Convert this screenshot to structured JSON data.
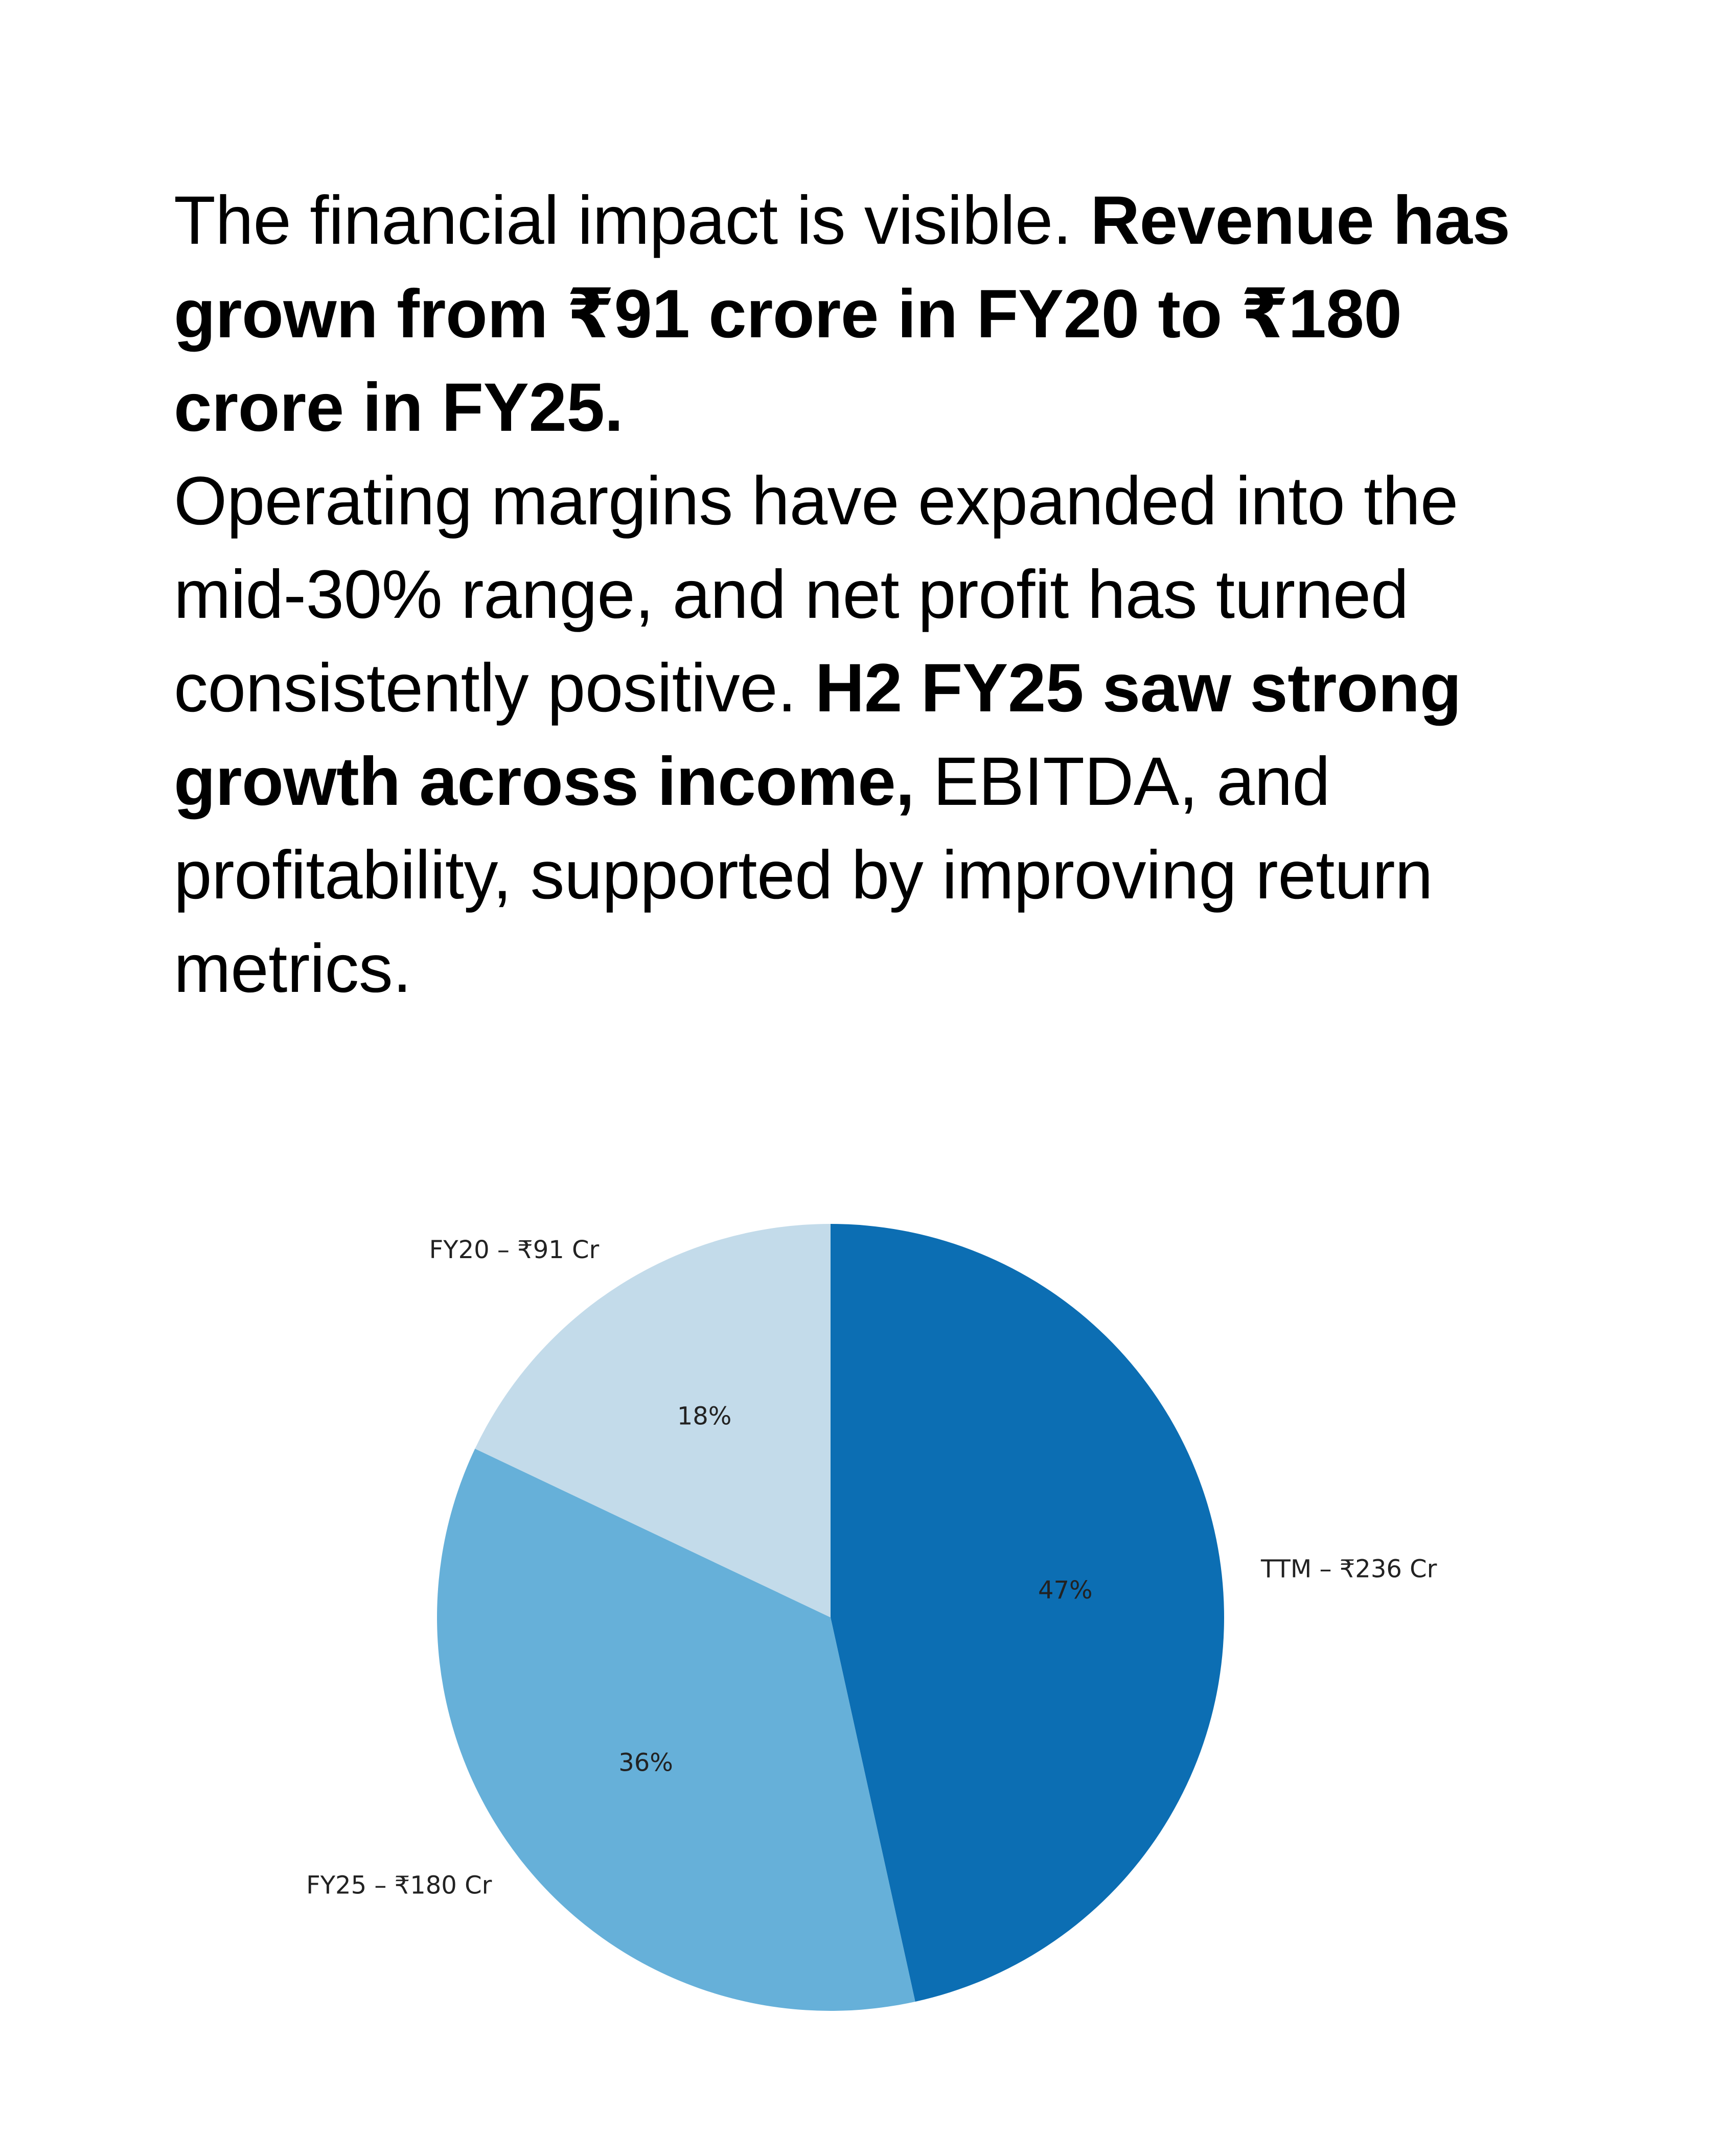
{
  "text": {
    "p1_normal": "The financial impact is visible. ",
    "p1_bold": "Revenue has grown from ₹91 crore in FY20 to ₹180 crore in FY25.",
    "p2_normal_a": "Operating margins have expanded into the mid-30% range, and net profit has turned consistently positive. ",
    "p2_bold": "H2 FY25 saw strong growth across income,",
    "p2_normal_b": " EBITDA, and profitability, supported by improving return metrics."
  },
  "chart_data": {
    "type": "pie",
    "title": "",
    "start_angle_deg": 90,
    "direction": "clockwise",
    "slices": [
      {
        "label": "TTM – ₹236 Cr",
        "value": 236,
        "pct_label": "47%",
        "color": "#0c6eb3"
      },
      {
        "label": "FY25 – ₹180 Cr",
        "value": 180,
        "pct_label": "36%",
        "color": "#66b0d9"
      },
      {
        "label": "FY20 – ₹91 Cr",
        "value": 91,
        "pct_label": "18%",
        "color": "#c3dbea"
      }
    ]
  }
}
